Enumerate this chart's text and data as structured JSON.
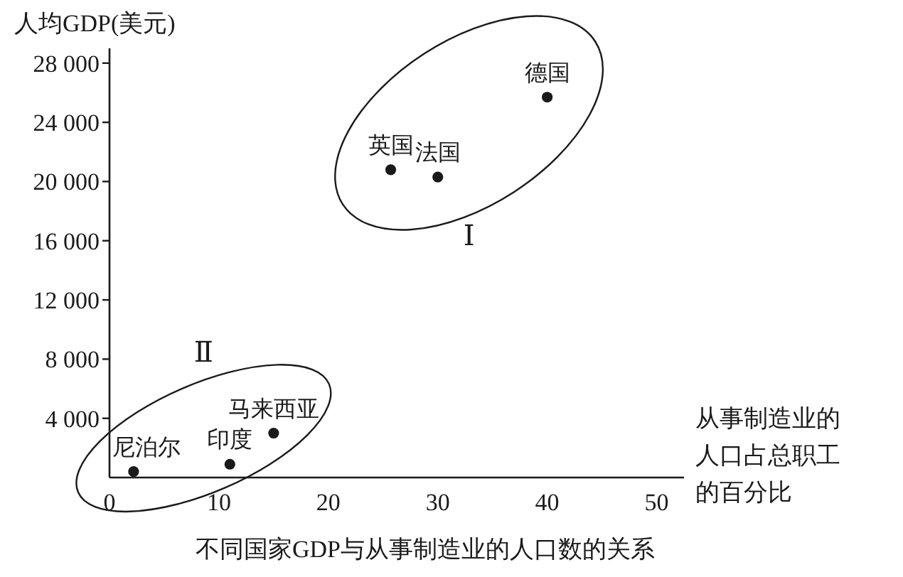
{
  "chart_data": {
    "type": "scatter",
    "title": "不同国家GDP与从事制造业的人口数的关系",
    "xlabel": "从事制造业的人口占总职工的百分比",
    "ylabel": "人均GDP(美元)",
    "xlim": [
      0,
      52.5
    ],
    "ylim": [
      0,
      29000
    ],
    "xticks": [
      0,
      10,
      20,
      30,
      40,
      50
    ],
    "yticks": [
      {
        "value": 4000,
        "label": "4 000"
      },
      {
        "value": 8000,
        "label": "8 000"
      },
      {
        "value": 12000,
        "label": "12 000"
      },
      {
        "value": 16000,
        "label": "16 000"
      },
      {
        "value": 20000,
        "label": "20 000"
      },
      {
        "value": 24000,
        "label": "24 000"
      },
      {
        "value": 28000,
        "label": "28 000"
      }
    ],
    "marker": "circle",
    "grid": false,
    "series": [
      {
        "name": "Ⅰ",
        "color": "#1a1a1a",
        "x": [
          25.7,
          30,
          40
        ],
        "values": [
          20800,
          20300,
          25700
        ]
      },
      {
        "name": "Ⅱ",
        "color": "#1a1a1a",
        "x": [
          2.2,
          11,
          15
        ],
        "values": [
          400,
          900,
          3000
        ]
      }
    ],
    "annotations": [
      {
        "text": "英国",
        "x": 25.7,
        "y": 20800
      },
      {
        "text": "法国",
        "x": 30,
        "y": 20300
      },
      {
        "text": "德国",
        "x": 40,
        "y": 25700
      },
      {
        "text": "尼泊尔",
        "x": 2.2,
        "y": 400
      },
      {
        "text": "印度",
        "x": 11,
        "y": 900
      },
      {
        "text": "马来西亚",
        "x": 15,
        "y": 3000
      }
    ]
  }
}
